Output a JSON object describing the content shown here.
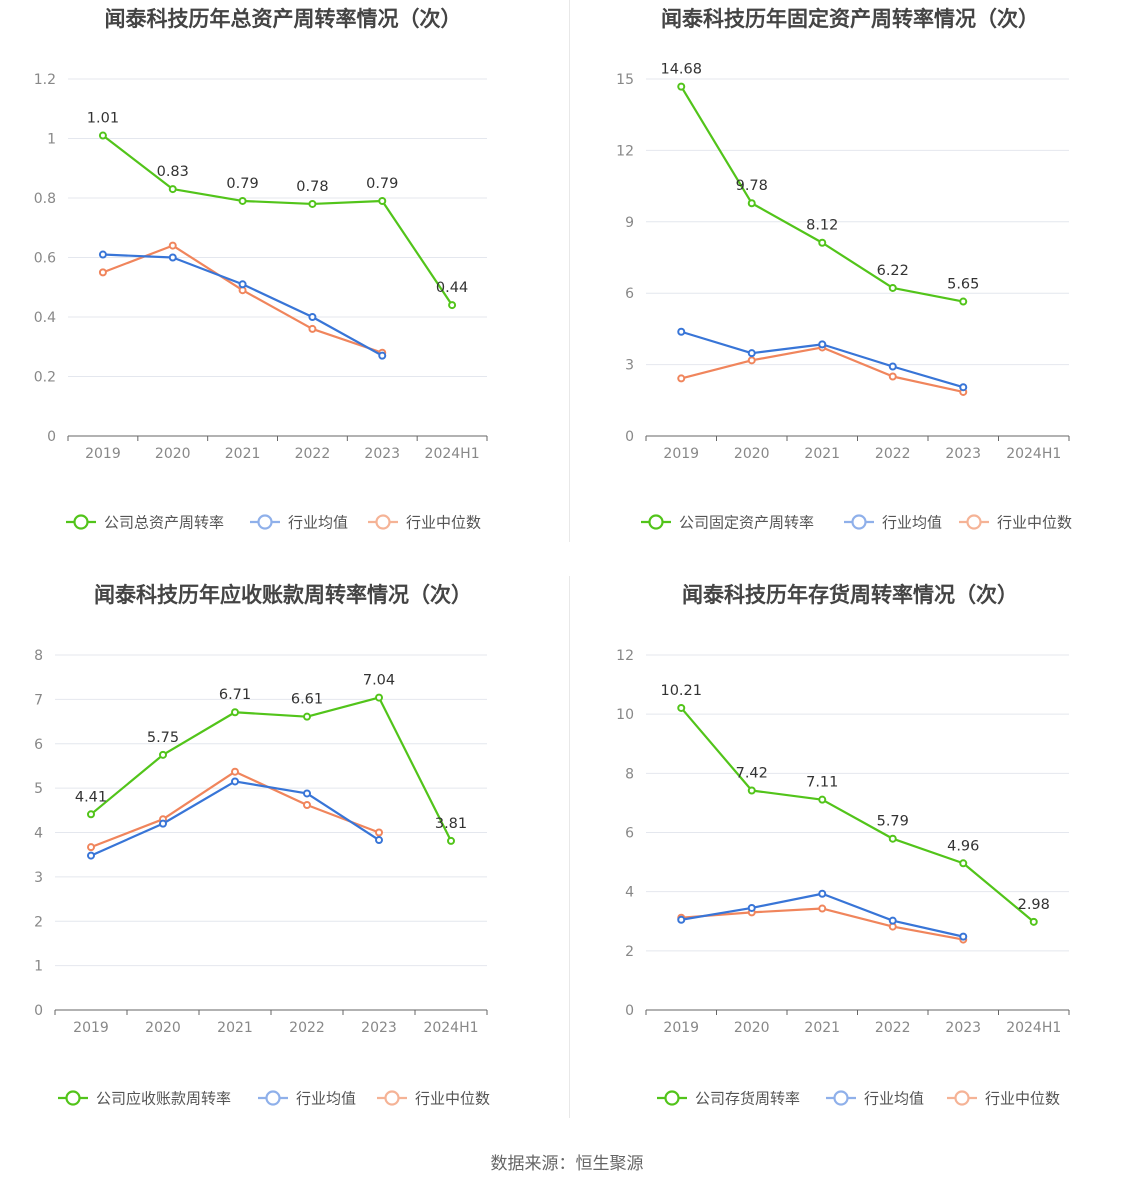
{
  "source": "数据来源：恒生聚源",
  "colors": {
    "company": "#52c41a",
    "avg": "#3875d7",
    "median": "#f0855c",
    "avg_legend": "#8fb0ea",
    "median_legend": "#f5b396"
  },
  "chart_data": [
    {
      "type": "line",
      "title": "闻泰科技历年总资产周转率情况（次）",
      "categories": [
        "2019",
        "2020",
        "2021",
        "2022",
        "2023",
        "2024H1"
      ],
      "yticks": [
        "0",
        "0.2",
        "0.4",
        "0.6",
        "0.8",
        "1",
        "1.2"
      ],
      "ylim": [
        0,
        1.2
      ],
      "grid": true,
      "legend_position": "bottom",
      "series": [
        {
          "name": "公司总资产周转率",
          "values": [
            1.01,
            0.83,
            0.79,
            0.78,
            0.79,
            0.44
          ],
          "labels": [
            "1.01",
            "0.83",
            "0.79",
            "0.78",
            "0.79",
            "0.44"
          ]
        },
        {
          "name": "行业均值",
          "values": [
            0.61,
            0.6,
            0.51,
            0.4,
            0.27,
            null
          ]
        },
        {
          "name": "行业中位数",
          "values": [
            0.55,
            0.64,
            0.49,
            0.36,
            0.28,
            null
          ]
        }
      ]
    },
    {
      "type": "line",
      "title": "闻泰科技历年固定资产周转率情况（次）",
      "categories": [
        "2019",
        "2020",
        "2021",
        "2022",
        "2023",
        "2024H1"
      ],
      "yticks": [
        "0",
        "3",
        "6",
        "9",
        "12",
        "15"
      ],
      "ylim": [
        0,
        15
      ],
      "grid": true,
      "legend_position": "bottom",
      "series": [
        {
          "name": "公司固定资产周转率",
          "values": [
            14.68,
            9.78,
            8.12,
            6.22,
            5.65,
            null
          ],
          "labels": [
            "14.68",
            "9.78",
            "8.12",
            "6.22",
            "5.65",
            ""
          ]
        },
        {
          "name": "行业均值",
          "values": [
            4.38,
            3.48,
            3.85,
            2.92,
            2.05,
            null
          ]
        },
        {
          "name": "行业中位数",
          "values": [
            2.42,
            3.18,
            3.72,
            2.5,
            1.85,
            null
          ]
        }
      ]
    },
    {
      "type": "line",
      "title": "闻泰科技历年应收账款周转率情况（次）",
      "categories": [
        "2019",
        "2020",
        "2021",
        "2022",
        "2023",
        "2024H1"
      ],
      "yticks": [
        "0",
        "1",
        "2",
        "3",
        "4",
        "5",
        "6",
        "7",
        "8"
      ],
      "ylim": [
        0,
        8
      ],
      "grid": true,
      "legend_position": "bottom",
      "series": [
        {
          "name": "公司应收账款周转率",
          "values": [
            4.41,
            5.75,
            6.71,
            6.61,
            7.04,
            3.81
          ],
          "labels": [
            "4.41",
            "5.75",
            "6.71",
            "6.61",
            "7.04",
            "3.81"
          ]
        },
        {
          "name": "行业均值",
          "values": [
            3.48,
            4.2,
            5.15,
            4.88,
            3.83,
            null
          ]
        },
        {
          "name": "行业中位数",
          "values": [
            3.67,
            4.3,
            5.37,
            4.62,
            4.0,
            null
          ]
        }
      ]
    },
    {
      "type": "line",
      "title": "闻泰科技历年存货周转率情况（次）",
      "categories": [
        "2019",
        "2020",
        "2021",
        "2022",
        "2023",
        "2024H1"
      ],
      "yticks": [
        "0",
        "2",
        "4",
        "6",
        "8",
        "10",
        "12"
      ],
      "ylim": [
        0,
        12
      ],
      "grid": true,
      "legend_position": "bottom",
      "series": [
        {
          "name": "公司存货周转率",
          "values": [
            10.21,
            7.42,
            7.11,
            5.79,
            4.96,
            2.98
          ],
          "labels": [
            "10.21",
            "7.42",
            "7.11",
            "5.79",
            "4.96",
            "2.98"
          ]
        },
        {
          "name": "行业均值",
          "values": [
            3.05,
            3.45,
            3.93,
            3.02,
            2.48,
            null
          ]
        },
        {
          "name": "行业中位数",
          "values": [
            3.12,
            3.3,
            3.43,
            2.82,
            2.38,
            null
          ]
        }
      ]
    }
  ]
}
